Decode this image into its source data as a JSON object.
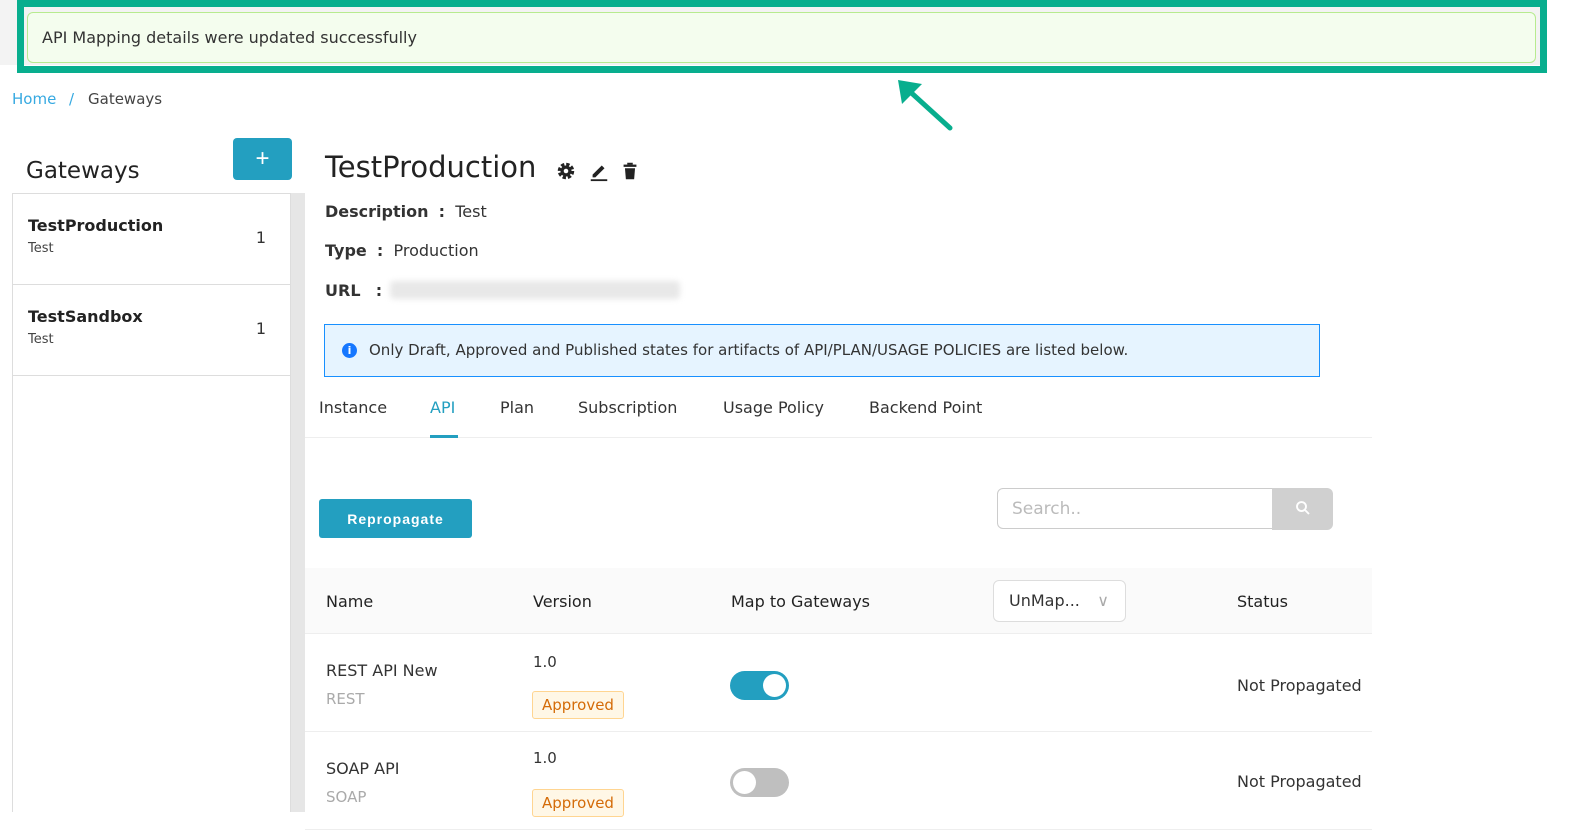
{
  "notification": {
    "message": "API Mapping details were updated successfully"
  },
  "breadcrumb": {
    "home": "Home",
    "separator": "/",
    "current": "Gateways"
  },
  "sidebar": {
    "title": "Gateways",
    "add_label": "+",
    "items": [
      {
        "name": "TestProduction",
        "description": "Test",
        "count": "1"
      },
      {
        "name": "TestSandbox",
        "description": "Test",
        "count": "1"
      }
    ]
  },
  "gateway": {
    "title": "TestProduction",
    "description_label": "Description",
    "description": "Test",
    "type_label": "Type",
    "type": "Production",
    "url_label": "URL",
    "separator": ":"
  },
  "info": {
    "icon": "i",
    "text": "Only Draft, Approved and Published states for artifacts of API/PLAN/USAGE POLICIES are listed below."
  },
  "tabs": [
    {
      "label": "Instance"
    },
    {
      "label": "API"
    },
    {
      "label": "Plan"
    },
    {
      "label": "Subscription"
    },
    {
      "label": "Usage Policy"
    },
    {
      "label": "Backend Point"
    }
  ],
  "active_tab": "API",
  "toolbar": {
    "repropagate": "Repropagate",
    "search_placeholder": "Search.."
  },
  "table": {
    "headers": {
      "name": "Name",
      "version": "Version",
      "map": "Map to Gateways",
      "filter": "UnMap...",
      "status": "Status"
    },
    "rows": [
      {
        "name": "REST API New",
        "type": "REST",
        "version": "1.0",
        "state": "Approved",
        "mapped": true,
        "status": "Not Propagated"
      },
      {
        "name": "SOAP API",
        "type": "SOAP",
        "version": "1.0",
        "state": "Approved",
        "mapped": false,
        "status": "Not Propagated"
      }
    ]
  },
  "colors": {
    "accent": "#239fc0",
    "highlight": "#08ae8e",
    "success_bg": "#f4fdee"
  }
}
